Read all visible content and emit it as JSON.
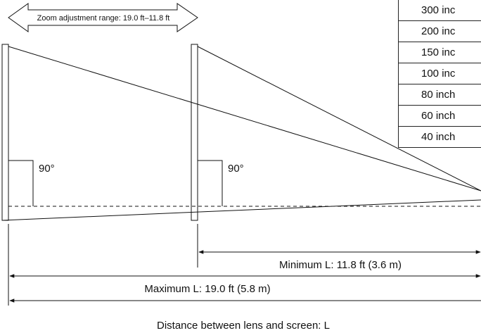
{
  "zoom_range_label": "Zoom adjustment range: 19.0 ft–11.8 ft",
  "angle_label_far": "90°",
  "angle_label_near": "90°",
  "min_distance_label": "Minimum L: 11.8 ft (3.6 m)",
  "max_distance_label": "Maximum L: 19.0 ft (5.8 m)",
  "axis_caption": "Distance between lens and screen: L",
  "screen_sizes": [
    "300 inc",
    "200 inc",
    "150 inc",
    "100 inc",
    "80 inch",
    "60 inch",
    "40 inch"
  ]
}
